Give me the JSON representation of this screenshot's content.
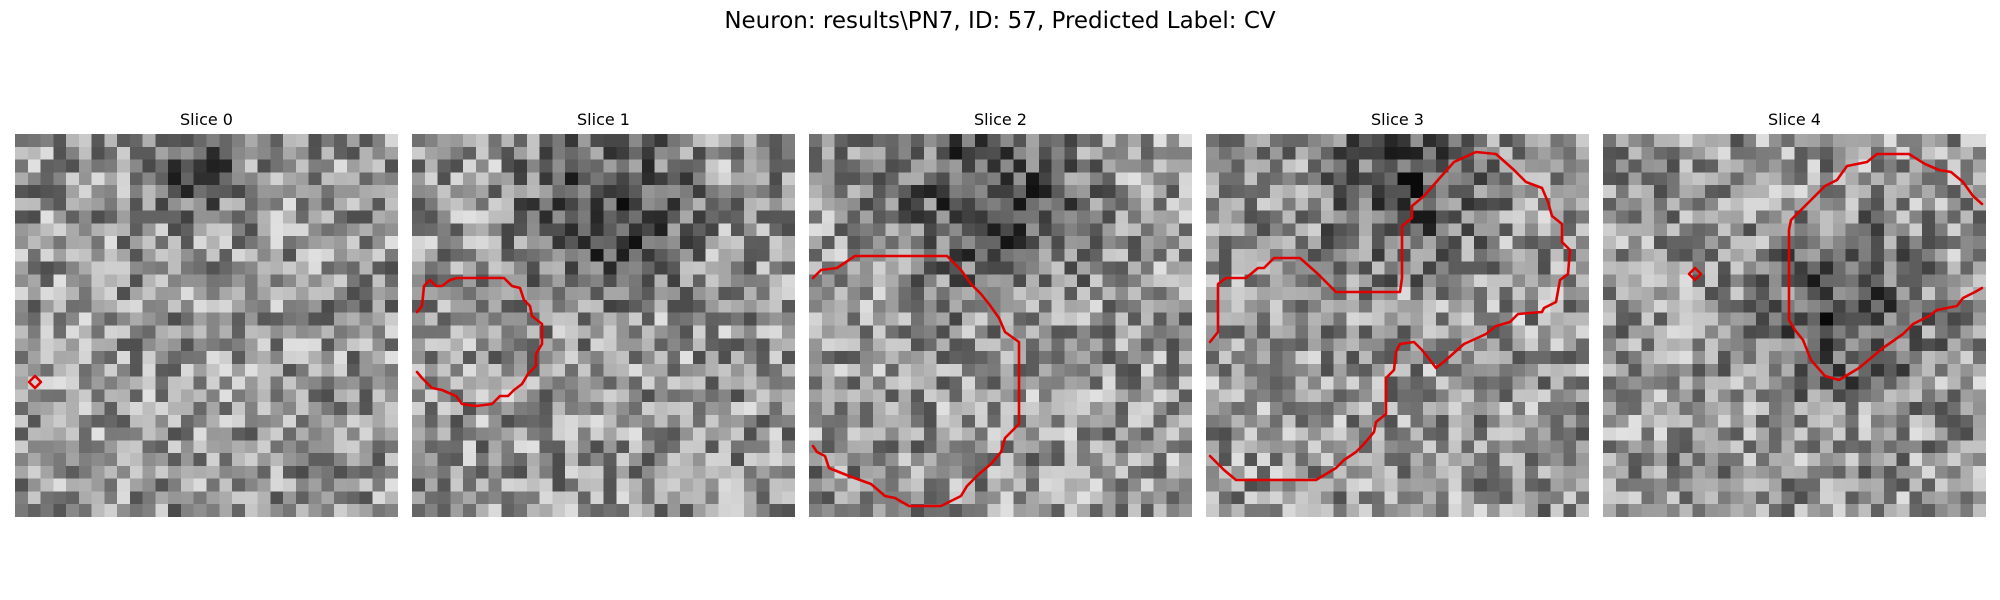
{
  "figure": {
    "title": "Neuron: results\\PN7, ID: 57, Predicted Label: CV"
  },
  "panels": [
    {
      "title": "Slice 0"
    },
    {
      "title": "Slice 1"
    },
    {
      "title": "Slice 2"
    },
    {
      "title": "Slice 3"
    },
    {
      "title": "Slice 4"
    }
  ],
  "colors": {
    "contour": "#e00000",
    "colormap": "grayscale"
  }
}
